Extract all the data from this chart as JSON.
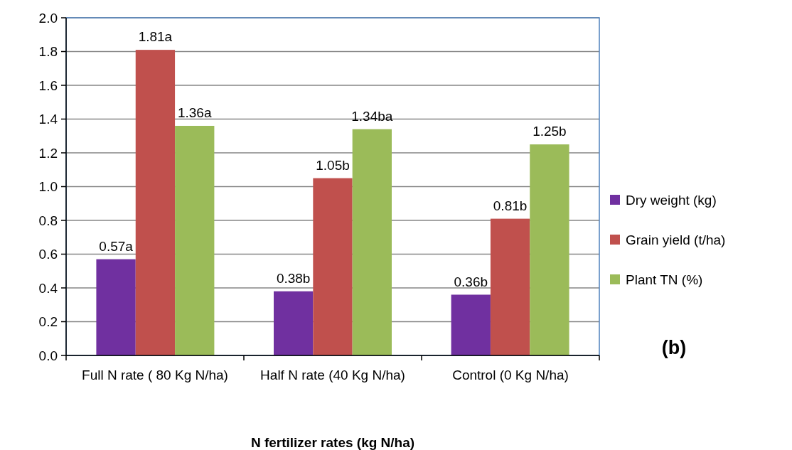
{
  "chart_data": {
    "type": "bar",
    "xlabel": "N fertilizer rates (kg N/ha)",
    "categories": [
      "Full N rate ( 80 Kg N/ha)",
      "Half N rate (40 Kg N/ha)",
      "Control (0 Kg N/ha)"
    ],
    "series": [
      {
        "name": "Dry weight (kg)",
        "color": "#7030a0",
        "values": [
          0.57,
          0.38,
          0.36
        ],
        "value_labels": [
          "0.57a",
          "0.38b",
          "0.36b"
        ]
      },
      {
        "name": "Grain yield (t/ha)",
        "color": "#c0504d",
        "values": [
          1.81,
          1.05,
          0.81
        ],
        "value_labels": [
          "1.81a",
          "1.05b",
          "0.81b"
        ]
      },
      {
        "name": "Plant TN (%)",
        "color": "#9bbb59",
        "values": [
          1.36,
          1.34,
          1.25
        ],
        "value_labels": [
          "1.36a",
          "1.34ba",
          "1.25b"
        ]
      }
    ],
    "ylim": [
      0,
      2
    ],
    "yticks": [
      {
        "value": 0,
        "label": "0.0"
      },
      {
        "value": 0.2,
        "label": "0.2"
      },
      {
        "value": 0.4,
        "label": "0.4"
      },
      {
        "value": 0.6,
        "label": "0.6"
      },
      {
        "value": 0.8,
        "label": "0.8"
      },
      {
        "value": 1,
        "label": "1.0"
      },
      {
        "value": 1.2,
        "label": "1.2"
      },
      {
        "value": 1.4,
        "label": "1.4"
      },
      {
        "value": 1.6,
        "label": "1.6"
      },
      {
        "value": 1.8,
        "label": "1.8"
      },
      {
        "value": 2,
        "label": "2.0"
      }
    ],
    "grid": "y",
    "legend": "right",
    "annotations": [
      "(b)"
    ]
  }
}
